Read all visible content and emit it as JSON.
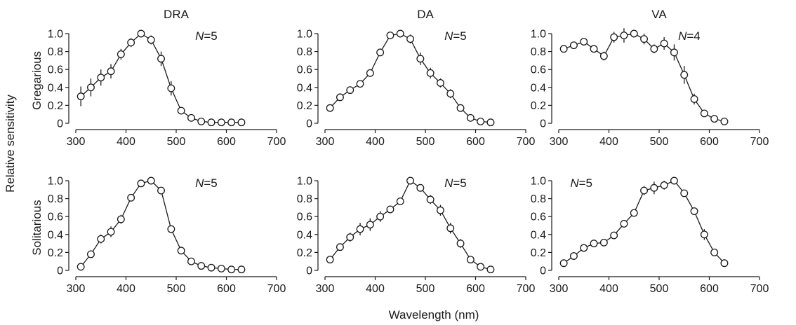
{
  "figure": {
    "ylabel": "Relative sensitivity",
    "xlabel": "Wavelength (nm)",
    "col_titles": [
      "DRA",
      "DA",
      "VA"
    ],
    "row_labels": [
      "Gregarious",
      "Solitarious"
    ]
  },
  "chart_data": [
    {
      "type": "line",
      "title": "DRA",
      "row": "Gregarious",
      "n_label": "5",
      "xlim": [
        300,
        700
      ],
      "ylim": [
        0,
        1.0
      ],
      "xticks": [
        300,
        400,
        500,
        600,
        700
      ],
      "yticks": [
        0,
        0.2,
        0.4,
        0.6,
        0.8,
        1.0
      ],
      "x": [
        310,
        330,
        350,
        370,
        390,
        410,
        430,
        450,
        470,
        490,
        510,
        530,
        550,
        570,
        590,
        610,
        630
      ],
      "y": [
        0.3,
        0.4,
        0.51,
        0.58,
        0.77,
        0.9,
        1.0,
        0.93,
        0.72,
        0.39,
        0.14,
        0.06,
        0.02,
        0.01,
        0.01,
        0.01,
        0.01
      ],
      "err": [
        0.11,
        0.1,
        0.09,
        0.08,
        0.06,
        0.05,
        0.02,
        0.05,
        0.08,
        0.08,
        0.03,
        0.02,
        0.01,
        0.01,
        0.01,
        0.01,
        0.01
      ]
    },
    {
      "type": "line",
      "title": "DA",
      "row": "Gregarious",
      "n_label": "5",
      "xlim": [
        300,
        700
      ],
      "ylim": [
        0,
        1.0
      ],
      "xticks": [
        300,
        400,
        500,
        600,
        700
      ],
      "yticks": [
        0,
        0.2,
        0.4,
        0.6,
        0.8,
        1.0
      ],
      "x": [
        310,
        330,
        350,
        370,
        390,
        410,
        430,
        450,
        470,
        490,
        510,
        530,
        550,
        570,
        590,
        610,
        630
      ],
      "y": [
        0.17,
        0.29,
        0.37,
        0.44,
        0.56,
        0.79,
        0.98,
        1.0,
        0.94,
        0.72,
        0.56,
        0.45,
        0.33,
        0.17,
        0.06,
        0.02,
        0.01
      ],
      "err": [
        0.02,
        0.03,
        0.04,
        0.04,
        0.04,
        0.03,
        0.02,
        0.02,
        0.05,
        0.07,
        0.06,
        0.05,
        0.05,
        0.04,
        0.02,
        0.01,
        0.01
      ]
    },
    {
      "type": "line",
      "title": "VA",
      "row": "Gregarious",
      "n_label": "4",
      "xlim": [
        300,
        700
      ],
      "ylim": [
        0,
        1.0
      ],
      "xticks": [
        300,
        400,
        500,
        600,
        700
      ],
      "yticks": [
        0,
        0.2,
        0.4,
        0.6,
        0.8,
        1.0
      ],
      "x": [
        310,
        330,
        350,
        370,
        390,
        410,
        430,
        450,
        470,
        490,
        510,
        530,
        550,
        570,
        590,
        610,
        630
      ],
      "y": [
        0.83,
        0.87,
        0.91,
        0.83,
        0.75,
        0.96,
        0.98,
        1.0,
        0.94,
        0.83,
        0.89,
        0.79,
        0.54,
        0.27,
        0.11,
        0.05,
        0.02
      ],
      "err": [
        0.03,
        0.03,
        0.03,
        0.03,
        0.05,
        0.06,
        0.08,
        0.04,
        0.06,
        0.05,
        0.07,
        0.09,
        0.1,
        0.06,
        0.03,
        0.02,
        0.02
      ]
    },
    {
      "type": "line",
      "title": "DRA",
      "row": "Solitarious",
      "n_label": "5",
      "xlim": [
        300,
        700
      ],
      "ylim": [
        0,
        1.0
      ],
      "xticks": [
        300,
        400,
        500,
        600,
        700
      ],
      "yticks": [
        0,
        0.2,
        0.4,
        0.6,
        0.8,
        1.0
      ],
      "x": [
        310,
        330,
        350,
        370,
        390,
        410,
        430,
        450,
        470,
        490,
        510,
        530,
        550,
        570,
        590,
        610,
        630
      ],
      "y": [
        0.04,
        0.18,
        0.35,
        0.43,
        0.57,
        0.81,
        0.97,
        1.0,
        0.89,
        0.46,
        0.22,
        0.1,
        0.05,
        0.03,
        0.02,
        0.01,
        0.01
      ],
      "err": [
        0.02,
        0.04,
        0.05,
        0.06,
        0.05,
        0.03,
        0.02,
        0.01,
        0.03,
        0.02,
        0.02,
        0.02,
        0.01,
        0.01,
        0.01,
        0.01,
        0.01
      ]
    },
    {
      "type": "line",
      "title": "DA",
      "row": "Solitarious",
      "n_label": "5",
      "xlim": [
        300,
        700
      ],
      "ylim": [
        0,
        1.0
      ],
      "xticks": [
        300,
        400,
        500,
        600,
        700
      ],
      "yticks": [
        0,
        0.2,
        0.4,
        0.6,
        0.8,
        1.0
      ],
      "x": [
        310,
        330,
        350,
        370,
        390,
        410,
        430,
        450,
        470,
        490,
        510,
        530,
        550,
        570,
        590,
        610,
        630
      ],
      "y": [
        0.12,
        0.26,
        0.37,
        0.46,
        0.51,
        0.6,
        0.68,
        0.77,
        1.0,
        0.92,
        0.79,
        0.67,
        0.47,
        0.3,
        0.12,
        0.04,
        0.01
      ],
      "err": [
        0.03,
        0.04,
        0.05,
        0.07,
        0.07,
        0.06,
        0.04,
        0.03,
        0.02,
        0.03,
        0.05,
        0.06,
        0.06,
        0.05,
        0.03,
        0.02,
        0.01
      ]
    },
    {
      "type": "line",
      "title": "VA",
      "row": "Solitarious",
      "n_label": "5",
      "xlim": [
        300,
        700
      ],
      "ylim": [
        0,
        1.0
      ],
      "xticks": [
        300,
        400,
        500,
        600,
        700
      ],
      "yticks": [
        0,
        0.2,
        0.4,
        0.6,
        0.8,
        1.0
      ],
      "x": [
        310,
        330,
        350,
        370,
        390,
        410,
        430,
        450,
        470,
        490,
        510,
        530,
        550,
        570,
        590,
        610,
        630
      ],
      "y": [
        0.08,
        0.16,
        0.25,
        0.3,
        0.31,
        0.39,
        0.52,
        0.64,
        0.89,
        0.92,
        0.95,
        1.0,
        0.86,
        0.66,
        0.4,
        0.2,
        0.08
      ],
      "err": [
        0.02,
        0.02,
        0.02,
        0.02,
        0.02,
        0.02,
        0.03,
        0.03,
        0.05,
        0.07,
        0.05,
        0.02,
        0.03,
        0.04,
        0.06,
        0.04,
        0.02
      ]
    }
  ]
}
